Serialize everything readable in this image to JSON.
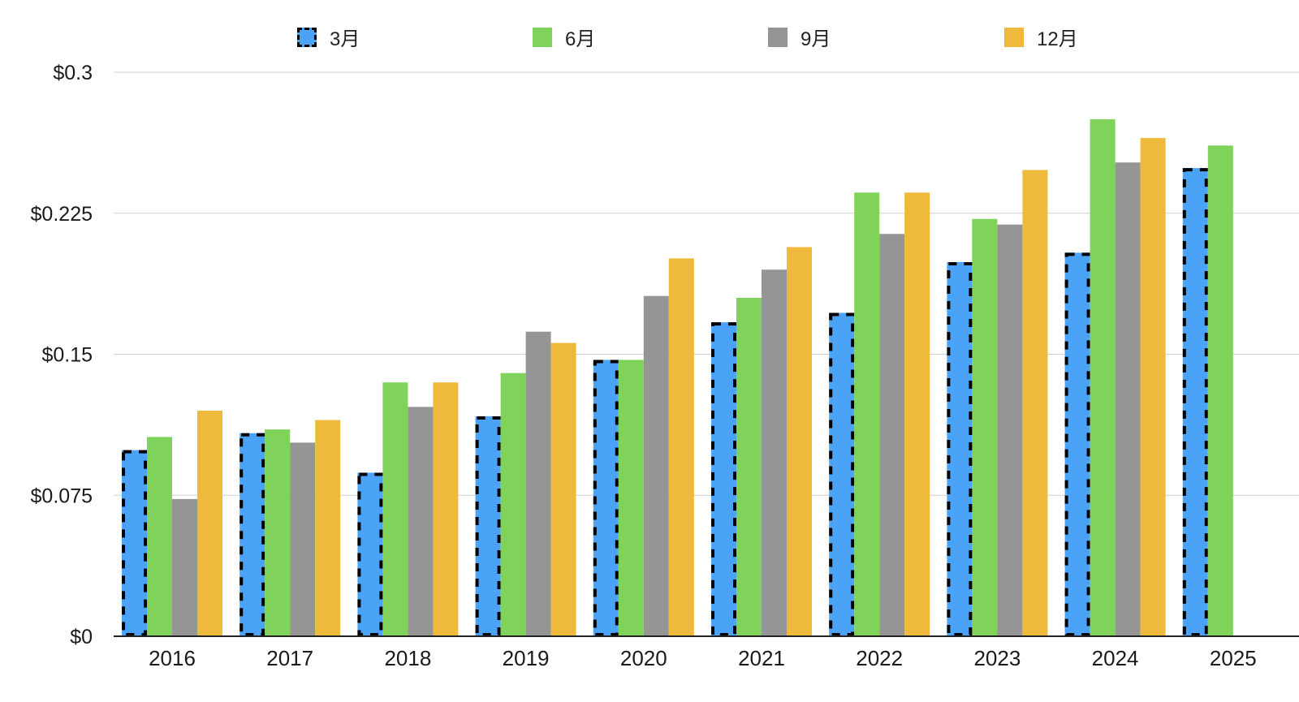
{
  "chart_data": {
    "type": "bar",
    "categories": [
      "2016",
      "2017",
      "2018",
      "2019",
      "2020",
      "2021",
      "2022",
      "2023",
      "2024",
      "2025"
    ],
    "series": [
      {
        "name": "3月",
        "color": "#4aa3f7",
        "pattern": "dashed-black-border",
        "values": [
          0.099,
          0.108,
          0.087,
          0.117,
          0.147,
          0.167,
          0.172,
          0.199,
          0.204,
          0.249
        ]
      },
      {
        "name": "6月",
        "color": "#7fd35a",
        "values": [
          0.106,
          0.11,
          0.135,
          0.14,
          0.147,
          0.18,
          0.236,
          0.222,
          0.275,
          0.261
        ]
      },
      {
        "name": "9月",
        "color": "#959595",
        "values": [
          0.073,
          0.103,
          0.122,
          0.162,
          0.181,
          0.195,
          0.214,
          0.219,
          0.252,
          null
        ]
      },
      {
        "name": "12月",
        "color": "#efba3c",
        "values": [
          0.12,
          0.115,
          0.135,
          0.156,
          0.201,
          0.207,
          0.236,
          0.248,
          0.265,
          null
        ]
      }
    ],
    "yticks": [
      "$0",
      "$0.075",
      "$0.15",
      "$0.225",
      "$0.3"
    ],
    "ytick_values": [
      0,
      0.075,
      0.15,
      0.225,
      0.3
    ],
    "ylim": [
      0,
      0.3
    ],
    "grid": true,
    "legend_position": "top"
  }
}
